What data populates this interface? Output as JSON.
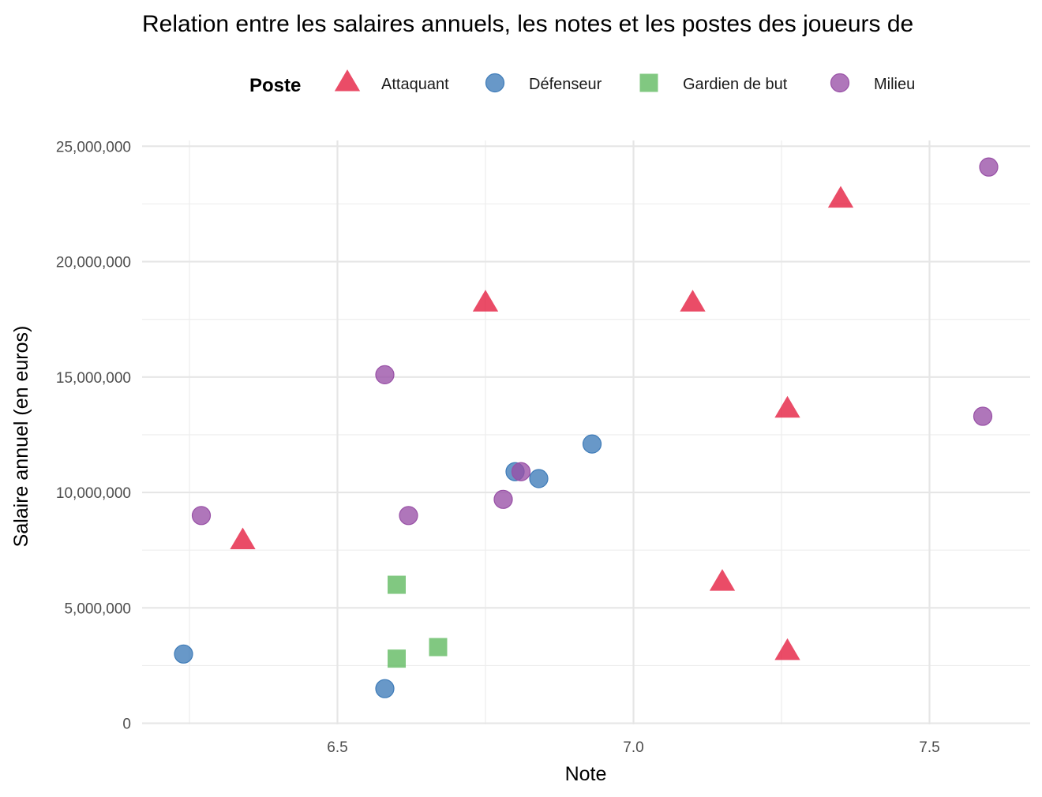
{
  "chart_data": {
    "type": "scatter",
    "title": "Relation entre les salaires annuels, les notes et les postes des joueurs de",
    "xlabel": "Note",
    "ylabel": "Salaire annuel (en euros)",
    "xlim": [
      6.17,
      7.67
    ],
    "ylim": [
      -50000,
      25250000
    ],
    "x_ticks": [
      6.5,
      7.0,
      7.5
    ],
    "x_tick_labels": [
      "6.5",
      "7.0",
      "7.5"
    ],
    "y_ticks": [
      0,
      5000000,
      10000000,
      15000000,
      20000000,
      25000000
    ],
    "y_tick_labels": [
      "0",
      "5,000,000",
      "10,000,000",
      "15,000,000",
      "20,000,000",
      "25,000,000"
    ],
    "grid": true,
    "legend": {
      "title": "Poste",
      "position": "top"
    },
    "series": [
      {
        "name": "Attaquant",
        "marker": "triangle",
        "color": "#E41A3C",
        "points": [
          {
            "x": 6.34,
            "y": 7900000
          },
          {
            "x": 6.75,
            "y": 18200000
          },
          {
            "x": 7.1,
            "y": 18200000
          },
          {
            "x": 7.15,
            "y": 6100000
          },
          {
            "x": 7.26,
            "y": 13600000
          },
          {
            "x": 7.26,
            "y": 3100000
          },
          {
            "x": 7.35,
            "y": 22700000
          }
        ]
      },
      {
        "name": "Défenseur",
        "marker": "circle",
        "color": "#3E7BB8",
        "points": [
          {
            "x": 6.24,
            "y": 3000000
          },
          {
            "x": 6.58,
            "y": 1500000
          },
          {
            "x": 6.8,
            "y": 10900000
          },
          {
            "x": 6.84,
            "y": 10600000
          },
          {
            "x": 6.93,
            "y": 12100000
          }
        ]
      },
      {
        "name": "Gardien de but",
        "marker": "square",
        "color": "#5EB95E",
        "points": [
          {
            "x": 6.6,
            "y": 6000000
          },
          {
            "x": 6.6,
            "y": 2800000
          },
          {
            "x": 6.67,
            "y": 3300000
          }
        ]
      },
      {
        "name": "Milieu",
        "marker": "circle",
        "color": "#9850A6",
        "points": [
          {
            "x": 6.27,
            "y": 9000000
          },
          {
            "x": 6.58,
            "y": 15100000
          },
          {
            "x": 6.62,
            "y": 9000000
          },
          {
            "x": 6.78,
            "y": 9700000
          },
          {
            "x": 6.81,
            "y": 10900000
          },
          {
            "x": 7.59,
            "y": 13300000
          },
          {
            "x": 7.6,
            "y": 24100000
          }
        ]
      }
    ]
  }
}
